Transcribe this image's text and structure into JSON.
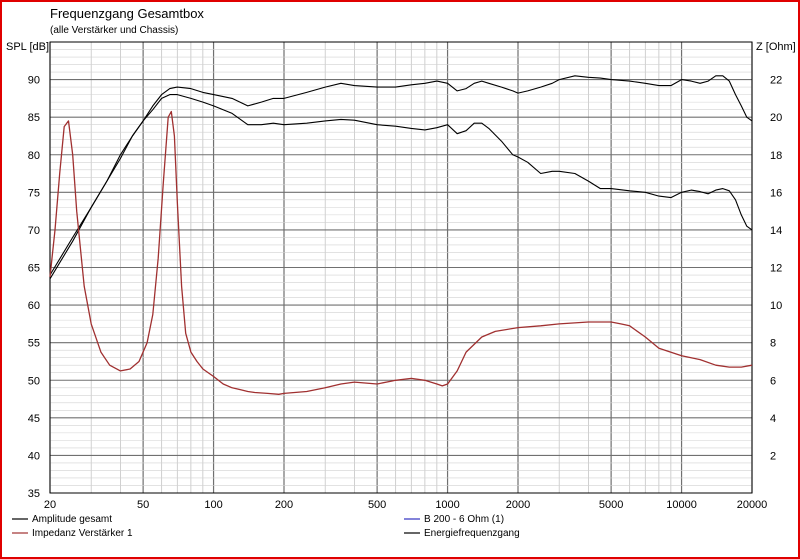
{
  "chart_data": {
    "type": "line",
    "title": "Frequenzgang Gesamtbox",
    "subtitle": "(alle Verstärker und Chassis)",
    "ylabel_left": "SPL [dB]",
    "ylabel_right": "Z [Ohm]",
    "x_scale": "log",
    "xlim": [
      20,
      20000
    ],
    "ylim_left": [
      35,
      95
    ],
    "ylim_right": [
      0,
      24
    ],
    "x_ticks": [
      20,
      50,
      100,
      200,
      500,
      1000,
      2000,
      5000,
      10000,
      20000
    ],
    "x_tick_labels": [
      "20",
      "50",
      "100",
      "200",
      "500",
      "1000",
      "2000",
      "5000",
      "10000",
      "20000"
    ],
    "y_ticks_left": [
      35,
      40,
      45,
      50,
      55,
      60,
      65,
      70,
      75,
      80,
      85,
      90
    ],
    "y_ticks_right": [
      2,
      4,
      6,
      8,
      10,
      12,
      14,
      16,
      18,
      20,
      22
    ],
    "grid": true,
    "legend_position": "bottom",
    "series": [
      {
        "name": "Amplitude gesamt",
        "axis": "left",
        "color": "#000000",
        "x": [
          20,
          25,
          30,
          35,
          40,
          45,
          50,
          55,
          60,
          65,
          70,
          80,
          90,
          100,
          120,
          140,
          160,
          180,
          200,
          250,
          300,
          350,
          400,
          500,
          600,
          700,
          800,
          900,
          1000,
          1100,
          1200,
          1300,
          1400,
          1500,
          1700,
          1900,
          2000,
          2200,
          2500,
          2800,
          3000,
          3500,
          4000,
          4500,
          5000,
          6000,
          7000,
          8000,
          9000,
          10000,
          11000,
          12000,
          13000,
          14000,
          15000,
          16000,
          17000,
          18000,
          19000,
          20000
        ],
        "y": [
          63.5,
          68.5,
          73,
          76.5,
          79.5,
          82.5,
          84.5,
          86,
          87.5,
          88,
          88,
          87.5,
          87,
          86.5,
          85.5,
          84,
          84,
          84.2,
          84,
          84.2,
          84.5,
          84.7,
          84.6,
          84,
          83.8,
          83.5,
          83.3,
          83.6,
          84,
          82.8,
          83.2,
          84.2,
          84.2,
          83.5,
          81.8,
          80,
          79.7,
          79,
          77.5,
          77.8,
          77.8,
          77.5,
          76.5,
          75.5,
          75.5,
          75.2,
          75,
          74.5,
          74.3,
          75,
          75.3,
          75.1,
          74.8,
          75.3,
          75.5,
          75.2,
          74,
          72,
          70.5,
          70
        ],
        "label": "lower black curve"
      },
      {
        "name": "Energiefrequenzgang",
        "axis": "left",
        "color": "#000000",
        "x": [
          20,
          25,
          30,
          35,
          40,
          45,
          50,
          55,
          60,
          65,
          70,
          80,
          90,
          100,
          120,
          140,
          160,
          180,
          200,
          250,
          300,
          350,
          400,
          500,
          600,
          700,
          800,
          900,
          1000,
          1100,
          1200,
          1300,
          1400,
          1500,
          1700,
          1900,
          2000,
          2200,
          2500,
          2800,
          3000,
          3500,
          4000,
          4500,
          5000,
          6000,
          7000,
          8000,
          9000,
          10000,
          11000,
          12000,
          13000,
          14000,
          15000,
          16000,
          17000,
          18000,
          19000,
          20000
        ],
        "y": [
          64,
          69,
          73,
          76.5,
          80,
          82.5,
          84.5,
          86.5,
          88,
          88.8,
          89,
          88.8,
          88.3,
          88,
          87.5,
          86.5,
          87,
          87.5,
          87.5,
          88.3,
          89,
          89.5,
          89.2,
          89,
          89,
          89.3,
          89.5,
          89.8,
          89.5,
          88.5,
          88.8,
          89.5,
          89.8,
          89.5,
          89,
          88.5,
          88.2,
          88.5,
          89,
          89.5,
          90,
          90.5,
          90.3,
          90.2,
          90,
          89.8,
          89.5,
          89.2,
          89.2,
          90,
          89.8,
          89.5,
          89.8,
          90.5,
          90.5,
          89.8,
          88,
          86.5,
          85,
          84.5
        ],
        "label": "upper black curve"
      },
      {
        "name": "Impedanz Verstärker 1",
        "axis": "right",
        "color": "#a03030",
        "x": [
          20,
          21,
          22,
          23,
          24,
          25,
          26,
          28,
          30,
          33,
          36,
          40,
          44,
          48,
          52,
          55,
          58,
          61,
          64,
          66,
          68,
          70,
          73,
          76,
          80,
          85,
          90,
          100,
          110,
          120,
          130,
          140,
          150,
          170,
          190,
          200,
          250,
          300,
          350,
          400,
          500,
          600,
          700,
          800,
          900,
          950,
          1000,
          1100,
          1200,
          1400,
          1600,
          2000,
          2500,
          3000,
          4000,
          5000,
          5500,
          6000,
          7000,
          8000,
          10000,
          12000,
          14000,
          16000,
          18000,
          20000
        ],
        "y": [
          11.5,
          14,
          17,
          19.5,
          19.8,
          18,
          15,
          11,
          9,
          7.5,
          6.8,
          6.5,
          6.6,
          7,
          8,
          9.5,
          12.5,
          16.5,
          20,
          20.3,
          19,
          15.5,
          11,
          8.5,
          7.5,
          7,
          6.6,
          6.2,
          5.8,
          5.6,
          5.5,
          5.4,
          5.35,
          5.3,
          5.25,
          5.3,
          5.4,
          5.6,
          5.8,
          5.9,
          5.8,
          6,
          6.1,
          6,
          5.8,
          5.7,
          5.8,
          6.5,
          7.5,
          8.3,
          8.6,
          8.8,
          8.9,
          9,
          9.1,
          9.1,
          9,
          8.9,
          8.3,
          7.7,
          7.3,
          7.1,
          6.8,
          6.7,
          6.7,
          6.8
        ],
        "label": "red impedance curve"
      }
    ],
    "legend": [
      {
        "name": "Amplitude gesamt",
        "color": "#000000"
      },
      {
        "name": "Impedanz Verstärker 1",
        "color": "#a03030"
      },
      {
        "name": "B 200 - 6 Ohm (1)",
        "color": "#3030c0"
      },
      {
        "name": "Energiefrequenzgang",
        "color": "#000000"
      }
    ]
  }
}
